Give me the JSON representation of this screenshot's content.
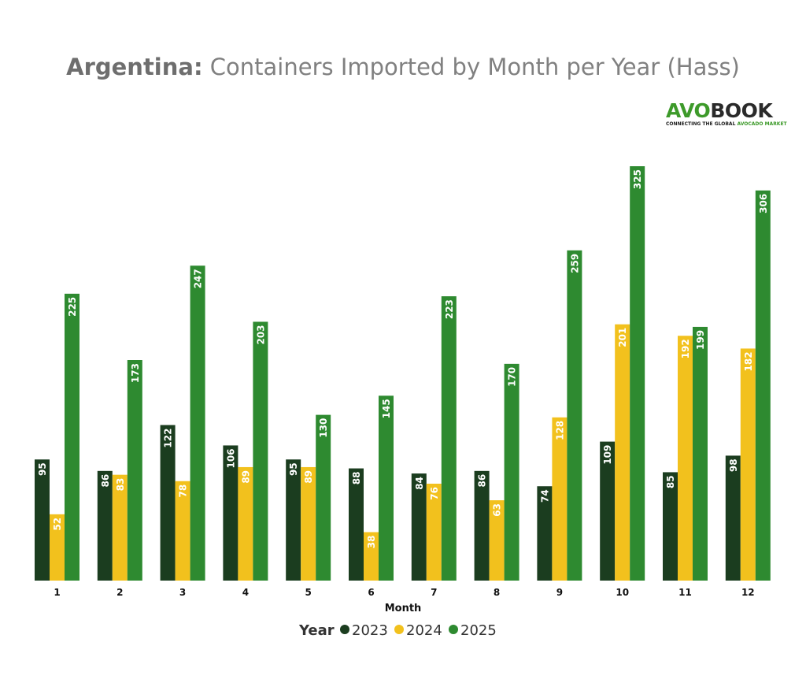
{
  "header": {
    "title_bold": "Argentina:",
    "title_rest": " Containers Imported by Month per Year (Hass)"
  },
  "logo": {
    "brand_a": "AVO",
    "brand_b": "BOOK",
    "tagline_a": "CONNECTING THE GLOBAL ",
    "tagline_b": "AVOCADO MARKET"
  },
  "chart_data": {
    "type": "bar",
    "title": "Argentina: Containers Imported by Month per Year (Hass)",
    "xlabel": "Month",
    "ylabel": "",
    "categories": [
      "1",
      "2",
      "3",
      "4",
      "5",
      "6",
      "7",
      "8",
      "9",
      "10",
      "11",
      "12"
    ],
    "series": [
      {
        "name": "2023",
        "color": "#1b3d1f",
        "values": [
          95,
          86,
          122,
          106,
          95,
          88,
          84,
          86,
          74,
          109,
          85,
          98
        ]
      },
      {
        "name": "2024",
        "color": "#f2c11d",
        "values": [
          52,
          83,
          78,
          89,
          89,
          38,
          76,
          63,
          128,
          201,
          192,
          182
        ]
      },
      {
        "name": "2025",
        "color": "#2e8a30",
        "values": [
          225,
          173,
          247,
          203,
          130,
          145,
          223,
          170,
          259,
          325,
          199,
          306
        ]
      }
    ],
    "ylim": [
      0,
      325
    ],
    "grid": false,
    "legend": {
      "title": "Year",
      "placement": "bottom"
    }
  }
}
